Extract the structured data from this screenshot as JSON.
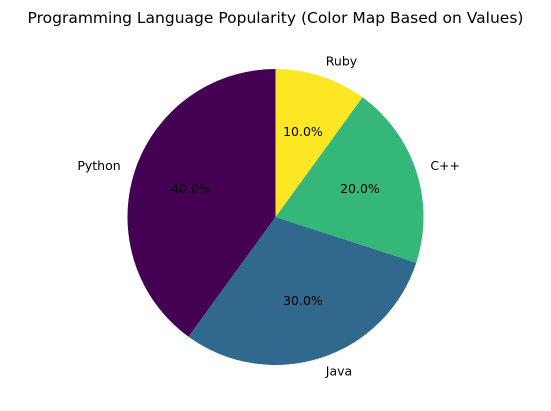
{
  "chart_data": {
    "type": "pie",
    "title": "Programming Language Popularity (Color Map Based on Values)",
    "categories": [
      "Python",
      "Java",
      "C++",
      "Ruby"
    ],
    "values": [
      40,
      30,
      20,
      10
    ],
    "percent_labels": [
      "40.0%",
      "30.0%",
      "20.0%",
      "10.0%"
    ],
    "colors": [
      "#440154",
      "#31688e",
      "#35b779",
      "#fde725"
    ],
    "start_angle_deg": 90,
    "direction": "counterclockwise"
  }
}
